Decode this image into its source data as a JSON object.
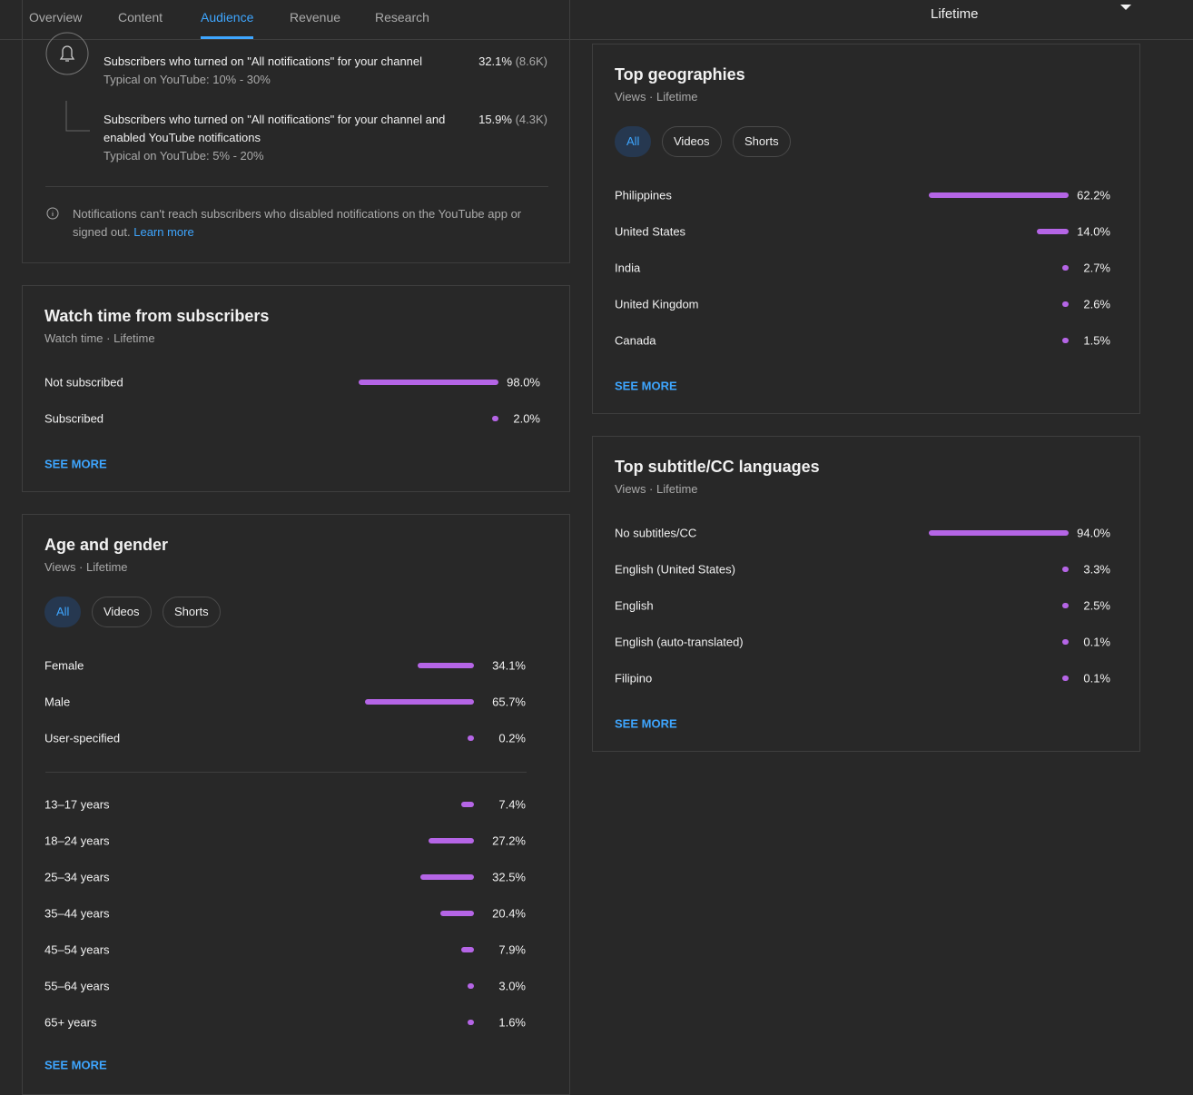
{
  "nav": {
    "tabs": [
      "Overview",
      "Content",
      "Audience",
      "Revenue",
      "Research"
    ],
    "active_tab": 2
  },
  "date_range": "Lifetime",
  "notifications": {
    "rows": [
      {
        "text": "Subscribers who turned on \"All notifications\" for your channel",
        "value_label": "32.1%",
        "count_label": "(8.6K)",
        "typical": "Typical on YouTube: 10% - 30%"
      },
      {
        "text": "Subscribers who turned on \"All notifications\" for your channel and enabled YouTube notifications",
        "value_label": "15.9%",
        "count_label": "(4.3K)",
        "typical": "Typical on YouTube: 5% - 20%"
      }
    ],
    "note": "Notifications can't reach subscribers who disabled notifications on the YouTube app or signed out.",
    "link": "Learn more"
  },
  "watch_time": {
    "title": "Watch time from subscribers",
    "subtitle": "Watch time · Lifetime",
    "rows": [
      {
        "label": "Not subscribed",
        "value": 98.0,
        "value_label": "98.0%"
      },
      {
        "label": "Subscribed",
        "value": 2.0,
        "value_label": "2.0%"
      }
    ],
    "see_more": "SEE MORE"
  },
  "age_gender": {
    "title": "Age and gender",
    "subtitle": "Views · Lifetime",
    "filters": [
      "All",
      "Videos",
      "Shorts"
    ],
    "gender_rows": [
      {
        "label": "Female",
        "value": 34.1,
        "value_label": "34.1%"
      },
      {
        "label": "Male",
        "value": 65.7,
        "value_label": "65.7%"
      },
      {
        "label": "User-specified",
        "value": 0.2,
        "value_label": "0.2%"
      }
    ],
    "age_rows": [
      {
        "label": "13–17 years",
        "value": 7.4,
        "value_label": "7.4%"
      },
      {
        "label": "18–24 years",
        "value": 27.2,
        "value_label": "27.2%"
      },
      {
        "label": "25–34 years",
        "value": 32.5,
        "value_label": "32.5%"
      },
      {
        "label": "35–44 years",
        "value": 20.4,
        "value_label": "20.4%"
      },
      {
        "label": "45–54 years",
        "value": 7.9,
        "value_label": "7.9%"
      },
      {
        "label": "55–64 years",
        "value": 3.0,
        "value_label": "3.0%"
      },
      {
        "label": "65+ years",
        "value": 1.6,
        "value_label": "1.6%"
      }
    ],
    "see_more": "SEE MORE"
  },
  "geographies": {
    "title": "Top geographies",
    "subtitle": "Views · Lifetime",
    "filters": [
      "All",
      "Videos",
      "Shorts"
    ],
    "rows": [
      {
        "label": "Philippines",
        "value": 62.2,
        "value_label": "62.2%"
      },
      {
        "label": "United States",
        "value": 14.0,
        "value_label": "14.0%"
      },
      {
        "label": "India",
        "value": 2.7,
        "value_label": "2.7%"
      },
      {
        "label": "United Kingdom",
        "value": 2.6,
        "value_label": "2.6%"
      },
      {
        "label": "Canada",
        "value": 1.5,
        "value_label": "1.5%"
      }
    ],
    "see_more": "SEE MORE"
  },
  "subtitle_languages": {
    "title": "Top subtitle/CC languages",
    "subtitle": "Views · Lifetime",
    "rows": [
      {
        "label": "No subtitles/CC",
        "value": 94.0,
        "value_label": "94.0%"
      },
      {
        "label": "English (United States)",
        "value": 3.3,
        "value_label": "3.3%"
      },
      {
        "label": "English",
        "value": 2.5,
        "value_label": "2.5%"
      },
      {
        "label": "English (auto-translated)",
        "value": 0.1,
        "value_label": "0.1%"
      },
      {
        "label": "Filipino",
        "value": 0.1,
        "value_label": "0.1%"
      }
    ],
    "see_more": "SEE MORE"
  }
}
